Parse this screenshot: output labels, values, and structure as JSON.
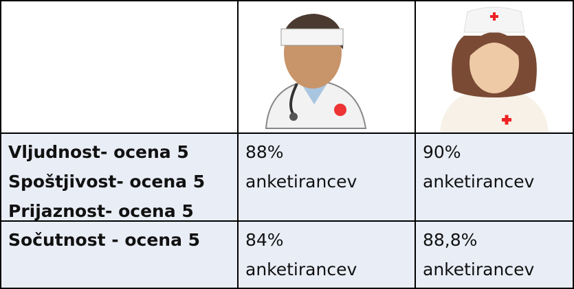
{
  "table": {
    "rows": [
      [
        [
          "Vljudnost- ocena 5",
          "Spoštjivost- ocena 5",
          "Prijaznost- ocena 5"
        ],
        [
          "88%",
          "anketirancev"
        ],
        [
          "90%",
          "anketirancev"
        ]
      ],
      [
        [
          "Sočutnost - ocena 5"
        ],
        [
          "84%",
          "anketirancev"
        ],
        [
          "88,8%",
          "anketirancev"
        ]
      ]
    ]
  }
}
